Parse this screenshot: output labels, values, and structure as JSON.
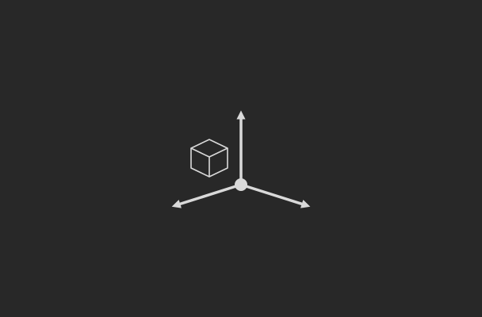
{
  "viewport": {
    "background_color": "#282828"
  },
  "gizmo": {
    "icon": "transform-gizmo-icon",
    "color": "#d9d9d9",
    "axes": [
      "up",
      "left-down",
      "right-down"
    ]
  },
  "cube": {
    "icon": "cube-icon",
    "stroke_color": "#d9d9d9"
  }
}
